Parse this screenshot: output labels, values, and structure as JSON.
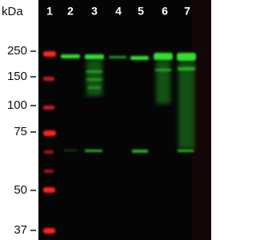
{
  "axis_label": "kDa",
  "lanes": [
    "1",
    "2",
    "3",
    "4",
    "5",
    "6",
    "7"
  ],
  "markers": [
    "250",
    "150",
    "100",
    "75",
    "50",
    "37"
  ]
}
